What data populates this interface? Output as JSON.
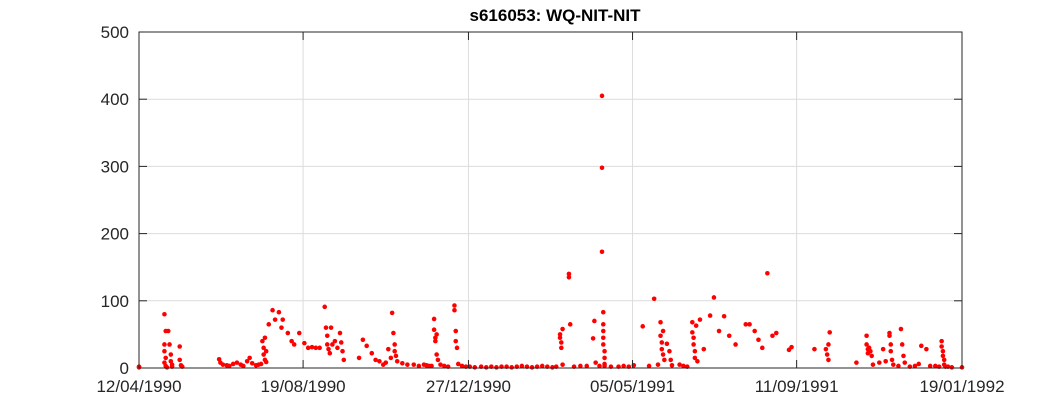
{
  "colors": {
    "marker": "#ff0000",
    "grid": "#dcdcdc",
    "axis": "#262626"
  },
  "chart_data": {
    "type": "scatter",
    "title": "s616053: WQ-NIT-NIT",
    "xlabel": "",
    "ylabel": "",
    "grid": true,
    "xlim": [
      "1990-04-12",
      "1992-01-19"
    ],
    "ylim": [
      0,
      500
    ],
    "x_ticks": [
      "1990-04-12",
      "1990-08-19",
      "1990-12-27",
      "1991-05-05",
      "1991-09-11",
      "1992-01-19"
    ],
    "x_tick_labels": [
      "12/04/1990",
      "19/08/1990",
      "27/12/1990",
      "05/05/1991",
      "11/09/1991",
      "19/01/1992"
    ],
    "y_ticks": [
      0,
      100,
      200,
      300,
      400,
      500
    ],
    "y_tick_labels": [
      "0",
      "100",
      "200",
      "300",
      "400",
      "500"
    ],
    "series": [
      {
        "color": "#ff0000",
        "points": [
          [
            "1990-04-12",
            1
          ],
          [
            "1990-04-12",
            2
          ],
          [
            "1990-05-02",
            80
          ],
          [
            "1990-05-03",
            55
          ],
          [
            "1990-05-02",
            35
          ],
          [
            "1990-05-02",
            25
          ],
          [
            "1990-05-03",
            15
          ],
          [
            "1990-05-02",
            8
          ],
          [
            "1990-05-03",
            3
          ],
          [
            "1990-05-04",
            1
          ],
          [
            "1990-05-05",
            55
          ],
          [
            "1990-05-06",
            35
          ],
          [
            "1990-05-07",
            20
          ],
          [
            "1990-05-07",
            10
          ],
          [
            "1990-05-08",
            5
          ],
          [
            "1990-05-08",
            2
          ],
          [
            "1990-05-14",
            32
          ],
          [
            "1990-05-14",
            12
          ],
          [
            "1990-05-15",
            4
          ],
          [
            "1990-05-16",
            2
          ],
          [
            "1990-06-14",
            13
          ],
          [
            "1990-06-15",
            8
          ],
          [
            "1990-06-17",
            5
          ],
          [
            "1990-06-20",
            4
          ],
          [
            "1990-06-22",
            3
          ],
          [
            "1990-06-25",
            6
          ],
          [
            "1990-06-28",
            8
          ],
          [
            "1990-07-01",
            5
          ],
          [
            "1990-07-03",
            3
          ],
          [
            "1990-07-06",
            10
          ],
          [
            "1990-07-08",
            15
          ],
          [
            "1990-07-10",
            7
          ],
          [
            "1990-07-13",
            4
          ],
          [
            "1990-07-15",
            5
          ],
          [
            "1990-07-17",
            6
          ],
          [
            "1990-07-18",
            40
          ],
          [
            "1990-07-19",
            30
          ],
          [
            "1990-07-19",
            20
          ],
          [
            "1990-07-20",
            12
          ],
          [
            "1990-07-20",
            45
          ],
          [
            "1990-07-21",
            25
          ],
          [
            "1990-07-21",
            9
          ],
          [
            "1990-07-23",
            65
          ],
          [
            "1990-07-26",
            86
          ],
          [
            "1990-07-31",
            83
          ],
          [
            "1990-07-28",
            72
          ],
          [
            "1990-08-03",
            72
          ],
          [
            "1990-08-07",
            52
          ],
          [
            "1990-08-02",
            60
          ],
          [
            "1990-08-10",
            40
          ],
          [
            "1990-08-12",
            35
          ],
          [
            "1990-08-16",
            52
          ],
          [
            "1990-08-20",
            37
          ],
          [
            "1990-08-23",
            30
          ],
          [
            "1990-08-26",
            31
          ],
          [
            "1990-08-29",
            30
          ],
          [
            "1990-09-01",
            30
          ],
          [
            "1990-09-05",
            91
          ],
          [
            "1990-09-06",
            60
          ],
          [
            "1990-09-07",
            48
          ],
          [
            "1990-09-07",
            35
          ],
          [
            "1990-09-08",
            28
          ],
          [
            "1990-09-09",
            22
          ],
          [
            "1990-09-10",
            60
          ],
          [
            "1990-09-11",
            35
          ],
          [
            "1990-09-13",
            40
          ],
          [
            "1990-09-15",
            30
          ],
          [
            "1990-09-17",
            52
          ],
          [
            "1990-09-18",
            38
          ],
          [
            "1990-09-19",
            25
          ],
          [
            "1990-09-20",
            12
          ],
          [
            "1990-10-02",
            15
          ],
          [
            "1990-10-05",
            42
          ],
          [
            "1990-10-08",
            33
          ],
          [
            "1990-10-12",
            22
          ],
          [
            "1990-10-15",
            12
          ],
          [
            "1990-10-18",
            10
          ],
          [
            "1990-10-21",
            5
          ],
          [
            "1990-10-23",
            8
          ],
          [
            "1990-10-25",
            28
          ],
          [
            "1990-10-27",
            15
          ],
          [
            "1990-10-28",
            82
          ],
          [
            "1990-10-29",
            52
          ],
          [
            "1990-10-30",
            35
          ],
          [
            "1990-10-30",
            25
          ],
          [
            "1990-10-31",
            18
          ],
          [
            "1990-11-01",
            10
          ],
          [
            "1990-11-05",
            7
          ],
          [
            "1990-11-09",
            5
          ],
          [
            "1990-11-14",
            5
          ],
          [
            "1990-11-18",
            3
          ],
          [
            "1990-11-22",
            5
          ],
          [
            "1990-11-24",
            4
          ],
          [
            "1990-11-26",
            3
          ],
          [
            "1990-11-28",
            3
          ],
          [
            "1990-11-30",
            73
          ],
          [
            "1990-11-30",
            57
          ],
          [
            "1990-12-01",
            45
          ],
          [
            "1990-12-01",
            40
          ],
          [
            "1990-12-02",
            50
          ],
          [
            "1990-12-02",
            20
          ],
          [
            "1990-12-03",
            12
          ],
          [
            "1990-12-05",
            5
          ],
          [
            "1990-12-08",
            3
          ],
          [
            "1990-12-11",
            2
          ],
          [
            "1990-12-16",
            93
          ],
          [
            "1990-12-16",
            86
          ],
          [
            "1990-12-17",
            55
          ],
          [
            "1990-12-17",
            40
          ],
          [
            "1990-12-18",
            30
          ],
          [
            "1990-12-19",
            6
          ],
          [
            "1990-12-22",
            3
          ],
          [
            "1990-12-25",
            2
          ],
          [
            "1990-12-28",
            2
          ],
          [
            "1991-01-01",
            1
          ],
          [
            "1991-01-06",
            2
          ],
          [
            "1991-01-10",
            1
          ],
          [
            "1991-01-14",
            2
          ],
          [
            "1991-01-18",
            1
          ],
          [
            "1991-01-22",
            2
          ],
          [
            "1991-01-26",
            2
          ],
          [
            "1991-01-30",
            1
          ],
          [
            "1991-02-03",
            2
          ],
          [
            "1991-02-07",
            3
          ],
          [
            "1991-02-11",
            2
          ],
          [
            "1991-02-15",
            1
          ],
          [
            "1991-02-19",
            2
          ],
          [
            "1991-02-23",
            3
          ],
          [
            "1991-02-27",
            2
          ],
          [
            "1991-03-03",
            1
          ],
          [
            "1991-03-06",
            2
          ],
          [
            "1991-03-09",
            50
          ],
          [
            "1991-03-09",
            45
          ],
          [
            "1991-03-10",
            38
          ],
          [
            "1991-03-10",
            30
          ],
          [
            "1991-03-11",
            58
          ],
          [
            "1991-03-11",
            5
          ],
          [
            "1991-03-16",
            135
          ],
          [
            "1991-03-16",
            140
          ],
          [
            "1991-03-17",
            65
          ],
          [
            "1991-03-20",
            2
          ],
          [
            "1991-03-25",
            3
          ],
          [
            "1991-03-30",
            3
          ],
          [
            "1991-04-04",
            44
          ],
          [
            "1991-04-05",
            70
          ],
          [
            "1991-04-06",
            8
          ],
          [
            "1991-04-09",
            3
          ],
          [
            "1991-04-11",
            405
          ],
          [
            "1991-04-11",
            298
          ],
          [
            "1991-04-11",
            173
          ],
          [
            "1991-04-12",
            83
          ],
          [
            "1991-04-12",
            65
          ],
          [
            "1991-04-12",
            55
          ],
          [
            "1991-04-12",
            45
          ],
          [
            "1991-04-12",
            35
          ],
          [
            "1991-04-13",
            25
          ],
          [
            "1991-04-13",
            15
          ],
          [
            "1991-04-13",
            6
          ],
          [
            "1991-04-13",
            3
          ],
          [
            "1991-04-18",
            2
          ],
          [
            "1991-04-24",
            2
          ],
          [
            "1991-04-28",
            3
          ],
          [
            "1991-05-02",
            2
          ],
          [
            "1991-05-06",
            4
          ],
          [
            "1991-05-13",
            62
          ],
          [
            "1991-05-18",
            3
          ],
          [
            "1991-05-22",
            103
          ],
          [
            "1991-05-25",
            5
          ],
          [
            "1991-05-27",
            68
          ],
          [
            "1991-05-27",
            48
          ],
          [
            "1991-05-28",
            38
          ],
          [
            "1991-05-28",
            28
          ],
          [
            "1991-05-29",
            55
          ],
          [
            "1991-05-29",
            20
          ],
          [
            "1991-05-30",
            12
          ],
          [
            "1991-06-01",
            36
          ],
          [
            "1991-06-03",
            25
          ],
          [
            "1991-06-04",
            12
          ],
          [
            "1991-06-05",
            4
          ],
          [
            "1991-06-11",
            5
          ],
          [
            "1991-06-14",
            3
          ],
          [
            "1991-06-17",
            2
          ],
          [
            "1991-06-21",
            68
          ],
          [
            "1991-06-21",
            53
          ],
          [
            "1991-06-22",
            45
          ],
          [
            "1991-06-22",
            35
          ],
          [
            "1991-06-23",
            25
          ],
          [
            "1991-06-23",
            15
          ],
          [
            "1991-06-24",
            63
          ],
          [
            "1991-06-25",
            10
          ],
          [
            "1991-06-27",
            72
          ],
          [
            "1991-06-30",
            28
          ],
          [
            "1991-07-05",
            78
          ],
          [
            "1991-07-08",
            105
          ],
          [
            "1991-07-12",
            55
          ],
          [
            "1991-07-16",
            77
          ],
          [
            "1991-07-20",
            48
          ],
          [
            "1991-07-25",
            35
          ],
          [
            "1991-08-02",
            65
          ],
          [
            "1991-08-05",
            65
          ],
          [
            "1991-08-09",
            55
          ],
          [
            "1991-08-12",
            42
          ],
          [
            "1991-08-15",
            30
          ],
          [
            "1991-08-19",
            141
          ],
          [
            "1991-08-23",
            48
          ],
          [
            "1991-08-26",
            52
          ],
          [
            "1991-09-05",
            27
          ],
          [
            "1991-09-07",
            31
          ],
          [
            "1991-09-25",
            28
          ],
          [
            "1991-10-04",
            28
          ],
          [
            "1991-10-05",
            20
          ],
          [
            "1991-10-06",
            35
          ],
          [
            "1991-10-06",
            12
          ],
          [
            "1991-10-07",
            53
          ],
          [
            "1991-10-28",
            8
          ],
          [
            "1991-11-05",
            48
          ],
          [
            "1991-11-05",
            35
          ],
          [
            "1991-11-06",
            28
          ],
          [
            "1991-11-06",
            22
          ],
          [
            "1991-11-07",
            30
          ],
          [
            "1991-11-08",
            25
          ],
          [
            "1991-11-09",
            18
          ],
          [
            "1991-11-10",
            5
          ],
          [
            "1991-11-15",
            8
          ],
          [
            "1991-11-18",
            28
          ],
          [
            "1991-11-20",
            10
          ],
          [
            "1991-11-23",
            52
          ],
          [
            "1991-11-23",
            48
          ],
          [
            "1991-11-24",
            35
          ],
          [
            "1991-11-24",
            25
          ],
          [
            "1991-11-25",
            12
          ],
          [
            "1991-11-26",
            5
          ],
          [
            "1991-11-30",
            3
          ],
          [
            "1991-12-02",
            58
          ],
          [
            "1991-12-03",
            35
          ],
          [
            "1991-12-04",
            18
          ],
          [
            "1991-12-05",
            8
          ],
          [
            "1991-12-09",
            2
          ],
          [
            "1991-12-13",
            3
          ],
          [
            "1991-12-16",
            6
          ],
          [
            "1991-12-18",
            33
          ],
          [
            "1991-12-22",
            28
          ],
          [
            "1991-12-25",
            3
          ],
          [
            "1991-12-29",
            3
          ],
          [
            "1992-01-01",
            2
          ],
          [
            "1992-01-03",
            40
          ],
          [
            "1992-01-03",
            32
          ],
          [
            "1992-01-04",
            25
          ],
          [
            "1992-01-04",
            18
          ],
          [
            "1992-01-05",
            12
          ],
          [
            "1992-01-05",
            5
          ],
          [
            "1992-01-06",
            2
          ],
          [
            "1992-01-08",
            2
          ],
          [
            "1992-01-11",
            1
          ],
          [
            "1992-01-19",
            1
          ]
        ]
      }
    ]
  }
}
